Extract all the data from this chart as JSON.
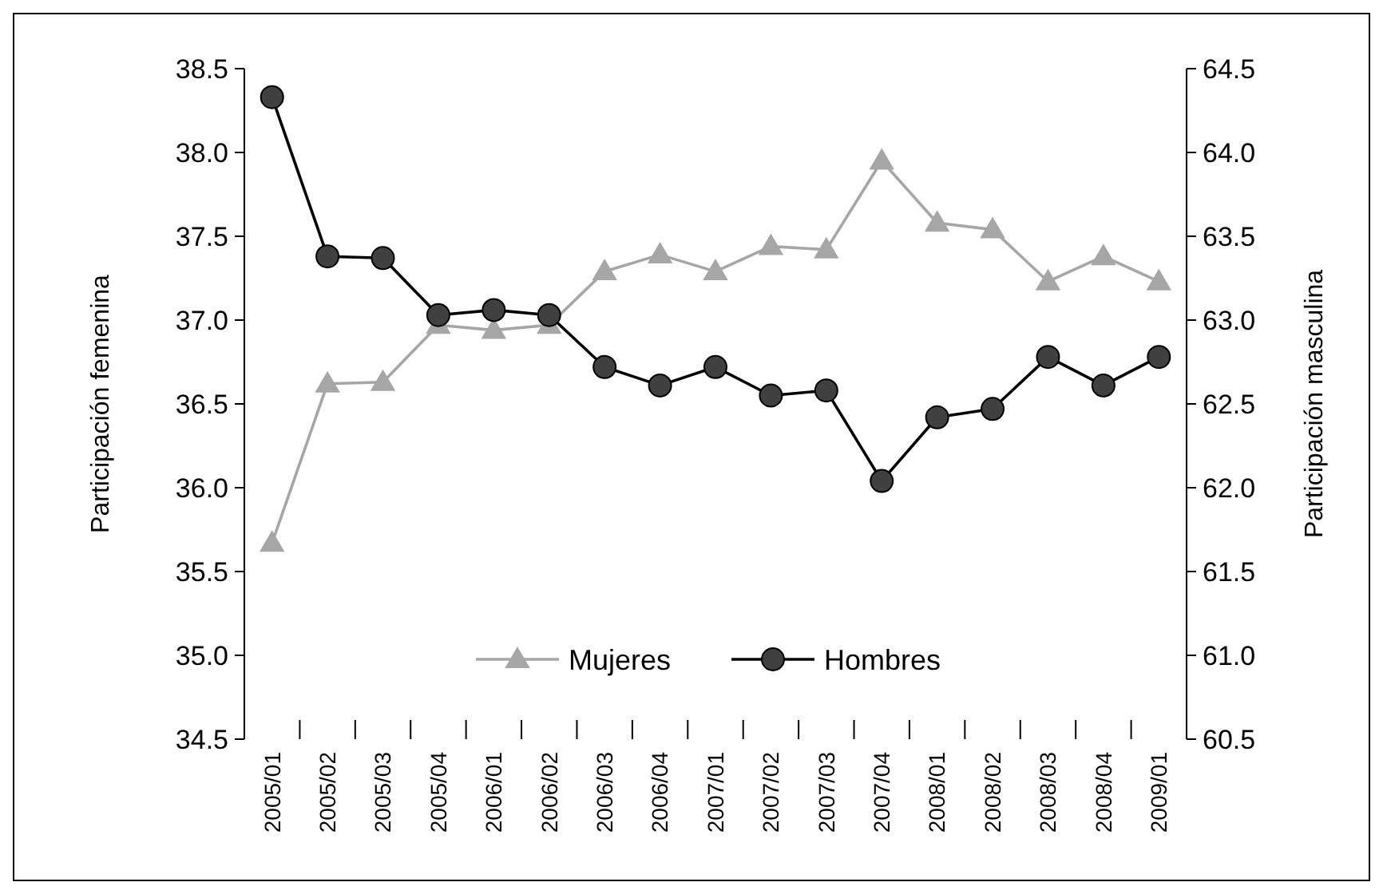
{
  "chart_data": {
    "type": "line",
    "categories": [
      "2005/01",
      "2005/02",
      "2005/03",
      "2005/04",
      "2006/01",
      "2006/02",
      "2006/03",
      "2006/04",
      "2007/01",
      "2007/02",
      "2007/03",
      "2007/04",
      "2008/01",
      "2008/02",
      "2008/03",
      "2008/04",
      "2009/01"
    ],
    "ylabel": "Participación femenina",
    "y2label": "Participación masculina",
    "ylim": [
      34.5,
      38.5
    ],
    "yticks": [
      {
        "value": 34.5,
        "label": "34.5"
      },
      {
        "value": 35,
        "label": "35.0"
      },
      {
        "value": 35.5,
        "label": "35.5"
      },
      {
        "value": 36,
        "label": "36.0"
      },
      {
        "value": 36.5,
        "label": "36.5"
      },
      {
        "value": 37,
        "label": "37.0"
      },
      {
        "value": 37.5,
        "label": "37.5"
      },
      {
        "value": 38,
        "label": "38.0"
      },
      {
        "value": 38.5,
        "label": "38.5"
      }
    ],
    "y2lim": [
      60.5,
      64.5
    ],
    "y2ticks": [
      {
        "value": 60.5,
        "label": "60.5"
      },
      {
        "value": 61,
        "label": "61.0"
      },
      {
        "value": 61.5,
        "label": "61.5"
      },
      {
        "value": 62,
        "label": "62.0"
      },
      {
        "value": 62.5,
        "label": "62.5"
      },
      {
        "value": 63,
        "label": "63.0"
      },
      {
        "value": 63.5,
        "label": "63.5"
      },
      {
        "value": 64,
        "label": "64.0"
      },
      {
        "value": 64.5,
        "label": "64.5"
      }
    ],
    "legend": "bottom",
    "grid": false,
    "line_style": "solid",
    "series": [
      {
        "name": "Mujeres",
        "color": "#a6a6a6",
        "marker": "triangle",
        "values": [
          35.67,
          36.62,
          36.63,
          36.97,
          36.94,
          36.97,
          37.29,
          37.39,
          37.29,
          37.44,
          37.42,
          37.95,
          37.58,
          37.54,
          37.23,
          37.38,
          37.23
        ]
      },
      {
        "name": "Hombres",
        "color": "#404040",
        "marker": "circle",
        "axis": "y2",
        "values": [
          64.33,
          63.38,
          63.37,
          63.03,
          63.06,
          63.03,
          62.72,
          62.61,
          62.72,
          62.55,
          62.58,
          62.04,
          62.42,
          62.47,
          62.78,
          62.61,
          62.78
        ]
      }
    ]
  }
}
